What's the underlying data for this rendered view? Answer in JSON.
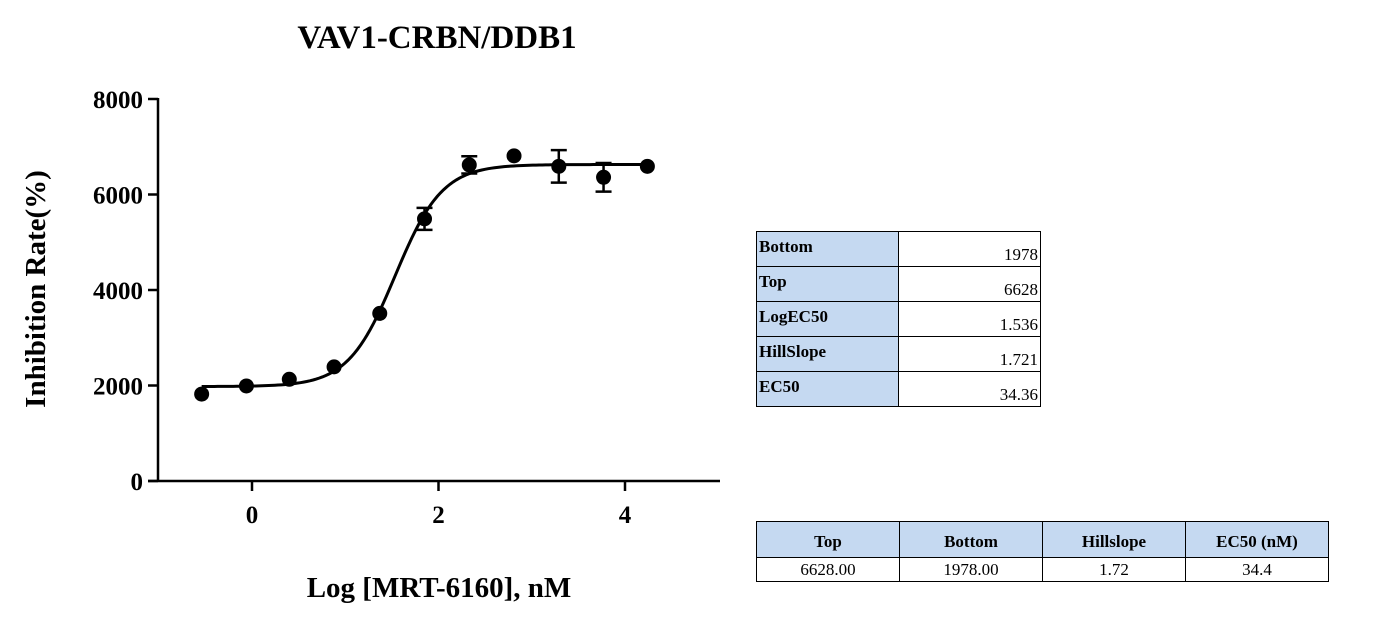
{
  "chart_data": {
    "type": "scatter",
    "title": "VAV1-CRBN/DDB1",
    "xlabel": "Log [MRT-6160], nM",
    "ylabel": "Inhibition Rate(%)",
    "xlim": [
      -1.0,
      5.0
    ],
    "ylim": [
      0,
      8000
    ],
    "x_ticks": [
      0,
      2,
      4
    ],
    "y_ticks": [
      0,
      2000,
      4000,
      6000,
      8000
    ],
    "grid": false,
    "series": [
      {
        "points": [
          {
            "x": -0.54,
            "y": 1820,
            "err": 0
          },
          {
            "x": -0.06,
            "y": 1990,
            "err": 0
          },
          {
            "x": 0.4,
            "y": 2130,
            "err": 0
          },
          {
            "x": 0.88,
            "y": 2390,
            "err": 0
          },
          {
            "x": 1.37,
            "y": 3510,
            "err": 0
          },
          {
            "x": 1.85,
            "y": 5490,
            "err": 230
          },
          {
            "x": 2.33,
            "y": 6620,
            "err": 180
          },
          {
            "x": 2.81,
            "y": 6810,
            "err": 0
          },
          {
            "x": 3.29,
            "y": 6590,
            "err": 340
          },
          {
            "x": 3.77,
            "y": 6360,
            "err": 300
          },
          {
            "x": 4.24,
            "y": 6590,
            "err": 0
          }
        ],
        "fit": {
          "model": "four-parameter logistic",
          "bottom": 1978,
          "top": 6628,
          "logEC50": 1.536,
          "hillslope": 1.721,
          "x_range": [
            -0.54,
            4.24
          ]
        }
      }
    ]
  },
  "parameter_table": {
    "rows": [
      {
        "name": "Bottom",
        "value": "1978"
      },
      {
        "name": "Top",
        "value": "6628"
      },
      {
        "name": "LogEC50",
        "value": "1.536"
      },
      {
        "name": "HillSlope",
        "value": "1.721"
      },
      {
        "name": "EC50",
        "value": "34.36"
      }
    ]
  },
  "summary_table": {
    "headers": [
      "Top",
      "Bottom",
      "Hillslope",
      "EC50 (nM)"
    ],
    "values": [
      "6628.00",
      "1978.00",
      "1.72",
      "34.4"
    ]
  }
}
